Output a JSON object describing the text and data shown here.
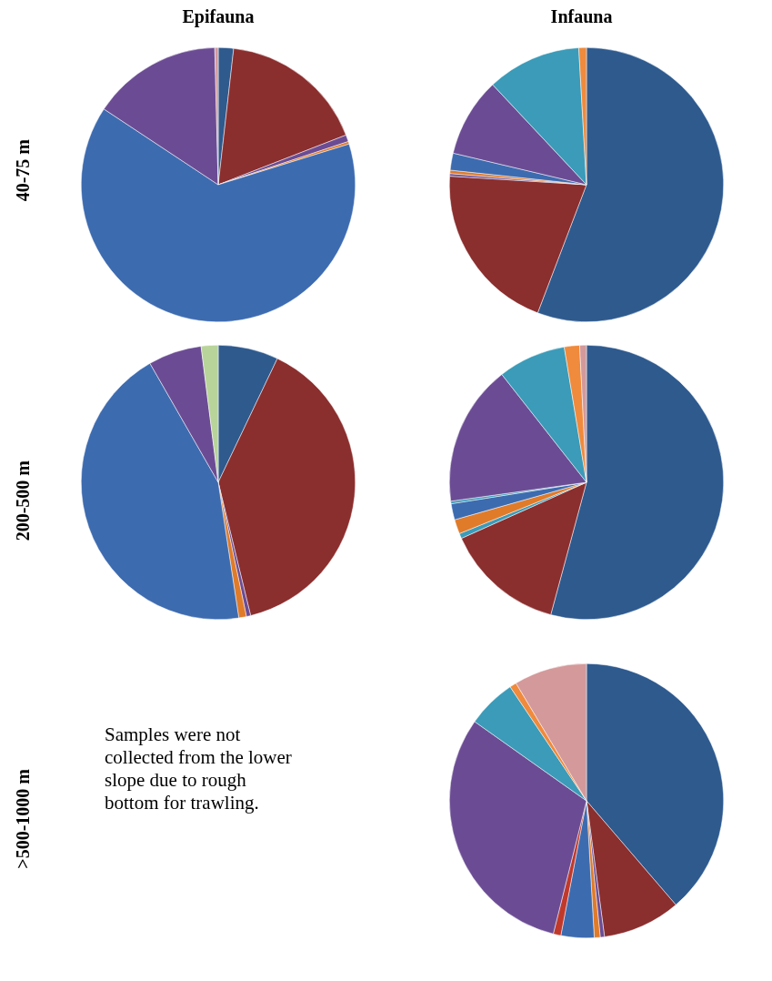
{
  "chart_data": [
    {
      "type": "pie",
      "title": "Epifauna",
      "ylabel": "40-75 m",
      "categories": [
        null,
        null,
        null,
        null,
        null,
        null,
        null
      ],
      "values": [
        1.8,
        17.3,
        0.8,
        0.3,
        64.1,
        15.3,
        0.4
      ],
      "colors": [
        "#2e5a8e",
        "#8b2e2e",
        "#6b4c94",
        "#e07b2a",
        "#3d6bb0",
        "#6b4c94",
        "#d4999a"
      ]
    },
    {
      "type": "pie",
      "title": "Infauna",
      "categories": [
        null,
        null,
        null,
        null,
        null,
        null,
        null,
        null
      ],
      "values": [
        55.8,
        20.2,
        0.3,
        0.4,
        2.0,
        9.3,
        11.1,
        0.9
      ],
      "colors": [
        "#2e5a8e",
        "#8b2e2e",
        "#6b4c94",
        "#e07b2a",
        "#3d6bb0",
        "#6b4c94",
        "#3b9bb8",
        "#f08a3c"
      ]
    },
    {
      "type": "pie",
      "ylabel": "200-500 m",
      "categories": [
        null,
        null,
        null,
        null,
        null,
        null,
        null
      ],
      "values": [
        7.1,
        39.1,
        0.5,
        0.9,
        44.1,
        6.3,
        2.0
      ],
      "colors": [
        "#2e5a8e",
        "#8b2e2e",
        "#6b4c94",
        "#e07b2a",
        "#3d6bb0",
        "#6b4c94",
        "#b8d49a"
      ]
    },
    {
      "type": "pie",
      "categories": [
        null,
        null,
        null,
        null,
        null,
        null,
        null,
        null,
        null,
        null
      ],
      "values": [
        54.2,
        14.1,
        0.6,
        1.7,
        1.9,
        0.3,
        16.6,
        8.0,
        1.8,
        0.8
      ],
      "colors": [
        "#2e5a8e",
        "#8b2e2e",
        "#3b9bb8",
        "#e07b2a",
        "#3d6bb0",
        "#3b9bb8",
        "#6b4c94",
        "#3b9bb8",
        "#f08a3c",
        "#d4999a"
      ]
    },
    {
      "type": "other",
      "ylabel": ">500-1000 m",
      "annotations": [
        "Samples were not collected from the lower slope due to rough bottom for trawling."
      ]
    },
    {
      "type": "pie",
      "categories": [
        null,
        null,
        null,
        null,
        null,
        null,
        null,
        null,
        null,
        null
      ],
      "values": [
        38.7,
        9.2,
        0.5,
        0.7,
        3.9,
        0.9,
        30.9,
        5.8,
        0.8,
        8.6
      ],
      "colors": [
        "#2e5a8e",
        "#8b2e2e",
        "#6b4c94",
        "#e07b2a",
        "#3d6bb0",
        "#c0392b",
        "#6b4c94",
        "#3b9bb8",
        "#f08a3c",
        "#d4999a"
      ]
    }
  ]
}
